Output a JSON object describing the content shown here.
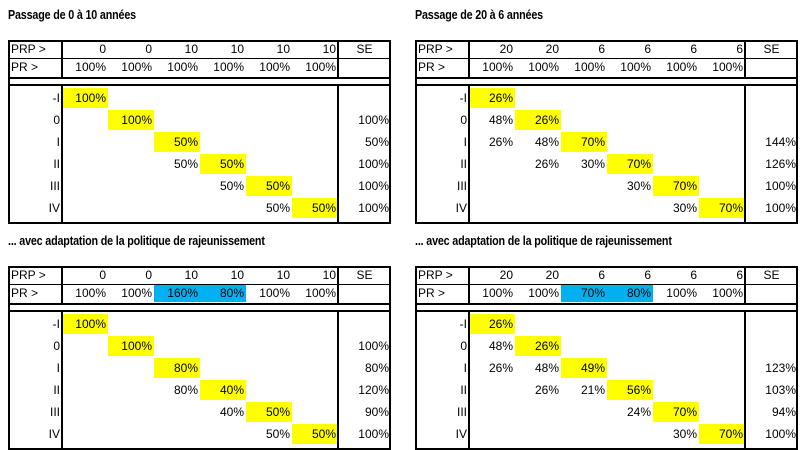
{
  "panels": [
    {
      "title": "Passage de 0 à 10 années",
      "prp_label": "PRP >",
      "pr_label": "PR >",
      "se_label": "SE",
      "prp": [
        "0",
        "0",
        "10",
        "10",
        "10",
        "10"
      ],
      "pr": [
        "100%",
        "100%",
        "100%",
        "100%",
        "100%",
        "100%"
      ],
      "pr_highlight": [
        "",
        "",
        "",
        "",
        "",
        ""
      ],
      "row_labels": [
        "-I",
        "0",
        "I",
        "II",
        "III",
        "IV"
      ],
      "cells": [
        [
          "100%",
          "",
          "",
          "",
          "",
          ""
        ],
        [
          "",
          "100%",
          "",
          "",
          "",
          ""
        ],
        [
          "",
          "",
          "50%",
          "",
          "",
          ""
        ],
        [
          "",
          "",
          "50%",
          "50%",
          "",
          ""
        ],
        [
          "",
          "",
          "",
          "50%",
          "50%",
          ""
        ],
        [
          "",
          "",
          "",
          "",
          "50%",
          "50%"
        ]
      ],
      "yellow": [
        [
          0,
          0
        ],
        [
          1,
          1
        ],
        [
          2,
          2
        ],
        [
          3,
          3
        ],
        [
          4,
          4
        ],
        [
          5,
          5
        ]
      ],
      "se": [
        "",
        "100%",
        "50%",
        "100%",
        "100%",
        "100%"
      ]
    },
    {
      "title": "Passage de 20 à 6 années",
      "prp_label": "PRP >",
      "pr_label": "PR >",
      "se_label": "SE",
      "prp": [
        "20",
        "20",
        "6",
        "6",
        "6",
        "6"
      ],
      "pr": [
        "100%",
        "100%",
        "100%",
        "100%",
        "100%",
        "100%"
      ],
      "pr_highlight": [
        "",
        "",
        "",
        "",
        "",
        ""
      ],
      "row_labels": [
        "-I",
        "0",
        "I",
        "II",
        "III",
        "IV"
      ],
      "cells": [
        [
          "26%",
          "",
          "",
          "",
          "",
          ""
        ],
        [
          "48%",
          "26%",
          "",
          "",
          "",
          ""
        ],
        [
          "26%",
          "48%",
          "70%",
          "",
          "",
          ""
        ],
        [
          "",
          "26%",
          "30%",
          "70%",
          "",
          ""
        ],
        [
          "",
          "",
          "",
          "30%",
          "70%",
          ""
        ],
        [
          "",
          "",
          "",
          "",
          "30%",
          "70%"
        ]
      ],
      "yellow": [
        [
          0,
          0
        ],
        [
          1,
          1
        ],
        [
          2,
          2
        ],
        [
          3,
          3
        ],
        [
          4,
          4
        ],
        [
          5,
          5
        ]
      ],
      "se": [
        "",
        "",
        "144%",
        "126%",
        "100%",
        "100%"
      ]
    },
    {
      "title": "... avec adaptation de la politique de rajeunissement",
      "prp_label": "PRP >",
      "pr_label": "PR >",
      "se_label": "SE",
      "prp": [
        "0",
        "0",
        "10",
        "10",
        "10",
        "10"
      ],
      "pr": [
        "100%",
        "100%",
        "160%",
        "80%",
        "100%",
        "100%"
      ],
      "pr_highlight": [
        "",
        "",
        "blue",
        "blue",
        "",
        ""
      ],
      "row_labels": [
        "-I",
        "0",
        "I",
        "II",
        "III",
        "IV"
      ],
      "cells": [
        [
          "100%",
          "",
          "",
          "",
          "",
          ""
        ],
        [
          "",
          "100%",
          "",
          "",
          "",
          ""
        ],
        [
          "",
          "",
          "80%",
          "",
          "",
          ""
        ],
        [
          "",
          "",
          "80%",
          "40%",
          "",
          ""
        ],
        [
          "",
          "",
          "",
          "40%",
          "50%",
          ""
        ],
        [
          "",
          "",
          "",
          "",
          "50%",
          "50%"
        ]
      ],
      "yellow": [
        [
          0,
          0
        ],
        [
          1,
          1
        ],
        [
          2,
          2
        ],
        [
          3,
          3
        ],
        [
          4,
          4
        ],
        [
          5,
          5
        ]
      ],
      "se": [
        "",
        "100%",
        "80%",
        "120%",
        "90%",
        "100%"
      ]
    },
    {
      "title": "... avec adaptation de la politique de rajeunissement",
      "prp_label": "PRP >",
      "pr_label": "PR >",
      "se_label": "SE",
      "prp": [
        "20",
        "20",
        "6",
        "6",
        "6",
        "6"
      ],
      "pr": [
        "100%",
        "100%",
        "70%",
        "80%",
        "100%",
        "100%"
      ],
      "pr_highlight": [
        "",
        "",
        "blue",
        "blue",
        "",
        ""
      ],
      "row_labels": [
        "-I",
        "0",
        "I",
        "II",
        "III",
        "IV"
      ],
      "cells": [
        [
          "26%",
          "",
          "",
          "",
          "",
          ""
        ],
        [
          "48%",
          "26%",
          "",
          "",
          "",
          ""
        ],
        [
          "26%",
          "48%",
          "49%",
          "",
          "",
          ""
        ],
        [
          "",
          "26%",
          "21%",
          "56%",
          "",
          ""
        ],
        [
          "",
          "",
          "",
          "24%",
          "70%",
          ""
        ],
        [
          "",
          "",
          "",
          "",
          "30%",
          "70%"
        ]
      ],
      "yellow": [
        [
          0,
          0
        ],
        [
          1,
          1
        ],
        [
          2,
          2
        ],
        [
          3,
          3
        ],
        [
          4,
          4
        ],
        [
          5,
          5
        ]
      ],
      "se": [
        "",
        "",
        "123%",
        "103%",
        "94%",
        "100%"
      ]
    }
  ]
}
